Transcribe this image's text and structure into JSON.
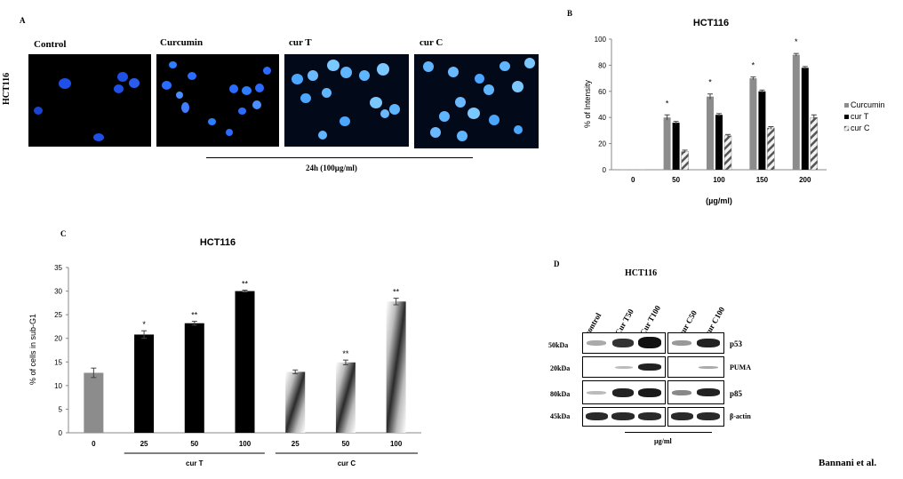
{
  "panel_a": {
    "letter": "A",
    "row_label": "HCT116",
    "images": [
      {
        "label": "Control"
      },
      {
        "label": "Curcumin"
      },
      {
        "label": "cur T"
      },
      {
        "label": "cur C"
      }
    ],
    "bracket_label": "24h (100µg/ml)"
  },
  "panel_b": {
    "letter": "B"
  },
  "panel_c": {
    "letter": "C"
  },
  "panel_d": {
    "letter": "D",
    "title": "HCT116",
    "lanes": [
      "control",
      "Cur T50",
      "Cur T100",
      "cur C50",
      "cur C100"
    ],
    "rows": [
      {
        "mw": "50kDa",
        "protein": "p53"
      },
      {
        "mw": "20kDa",
        "protein": "PUMA"
      },
      {
        "mw": "80kDa",
        "protein": "p85"
      },
      {
        "mw": "45kDa",
        "protein": "β-actin"
      }
    ],
    "footer": "µg/ml"
  },
  "author": "Bannani et al.",
  "colors": {
    "curcumin": "#8c8c8c",
    "curT": "#000000",
    "curC_hatch": "#555555",
    "nuclei": "#2a6cff"
  },
  "chart_data": [
    {
      "type": "bar",
      "title": "HCT116",
      "xlabel": "(µg/ml)",
      "ylabel": "% of Intensity",
      "categories": [
        "0",
        "50",
        "100",
        "150",
        "200"
      ],
      "ylim": [
        0,
        100
      ],
      "yticks": [
        "0",
        "20",
        "40",
        "60",
        "80",
        "100"
      ],
      "legend_position": "right",
      "series": [
        {
          "name": "Curcumin",
          "values": [
            0,
            40,
            56,
            70,
            88
          ],
          "errors": [
            0,
            2,
            2,
            1,
            1
          ]
        },
        {
          "name": "cur T",
          "values": [
            0,
            36,
            42,
            60,
            78
          ],
          "errors": [
            0,
            1,
            1,
            1,
            1
          ]
        },
        {
          "name": "cur C",
          "values": [
            0,
            14,
            26,
            32,
            40
          ],
          "errors": [
            0,
            1,
            1,
            1,
            2
          ]
        }
      ],
      "annotations": [
        "*",
        "*",
        "*",
        "*"
      ]
    },
    {
      "type": "bar",
      "title": "HCT116",
      "ylabel": "% of cells in sub-G1",
      "categories": [
        "0",
        "25",
        "50",
        "100",
        "25",
        "50",
        "100"
      ],
      "ylim": [
        0,
        35
      ],
      "yticks": [
        "0",
        "5",
        "10",
        "15",
        "20",
        "25",
        "30",
        "35"
      ],
      "values": [
        12.7,
        20.8,
        23.2,
        30.0,
        12.9,
        14.9,
        27.8
      ],
      "errors": [
        1.0,
        0.8,
        0.4,
        0.2,
        0.4,
        0.5,
        0.7
      ],
      "styles": [
        "gray",
        "black",
        "black",
        "black",
        "hatch",
        "hatch",
        "hatch"
      ],
      "annotations": [
        "",
        "*",
        "**",
        "**",
        "",
        "**",
        "**"
      ],
      "groups": [
        {
          "label": "cur T"
        },
        {
          "label": "cur C"
        }
      ],
      "grid": false
    }
  ]
}
